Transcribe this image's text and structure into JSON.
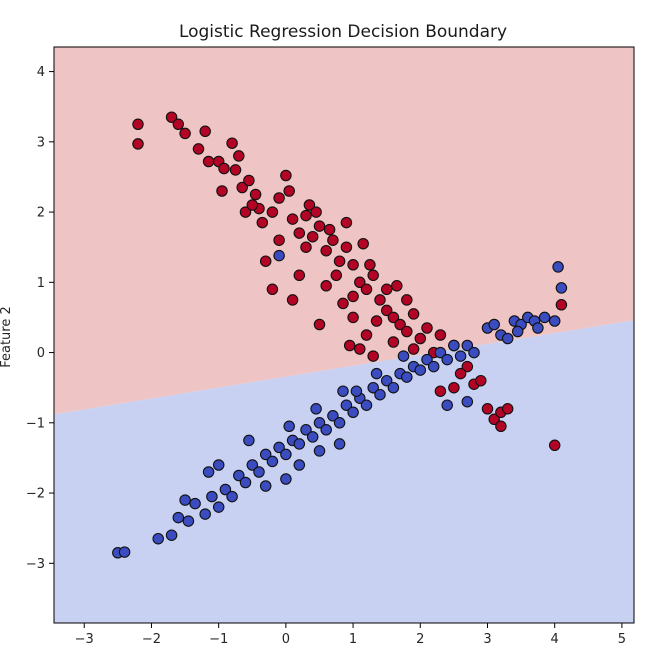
{
  "chart_data": {
    "type": "scatter",
    "title": "Logistic Regression Decision Boundary",
    "xlabel": "",
    "ylabel": "Feature 2",
    "xlim": [
      -3.45,
      5.18
    ],
    "ylim": [
      -3.85,
      4.35
    ],
    "x_ticks": [
      -3,
      -2,
      -1,
      0,
      1,
      2,
      3,
      4,
      5
    ],
    "y_ticks": [
      -3,
      -2,
      -1,
      0,
      1,
      2,
      3,
      4
    ],
    "x_tick_labels": [
      "−3",
      "−2",
      "−1",
      "0",
      "1",
      "2",
      "3",
      "4",
      "5"
    ],
    "y_tick_labels": [
      "−3",
      "−2",
      "−1",
      "0",
      "1",
      "2",
      "3",
      "4"
    ],
    "grid": false,
    "legend": "none",
    "decision_boundary": {
      "x": [
        -3.45,
        5.18
      ],
      "y": [
        -0.88,
        0.46
      ]
    },
    "regions": [
      {
        "class": 1,
        "side": "above",
        "color": "#eec4c4"
      },
      {
        "class": 0,
        "side": "below",
        "color": "#c8d1f1"
      }
    ],
    "series": [
      {
        "class": 1,
        "color": "#b40426",
        "points": [
          [
            -2.2,
            3.25
          ],
          [
            -2.2,
            2.97
          ],
          [
            -1.7,
            3.35
          ],
          [
            -1.6,
            3.25
          ],
          [
            -1.5,
            3.12
          ],
          [
            -1.3,
            2.9
          ],
          [
            -1.2,
            3.15
          ],
          [
            -1.15,
            2.72
          ],
          [
            -1.0,
            2.72
          ],
          [
            -0.92,
            2.62
          ],
          [
            -0.8,
            2.98
          ],
          [
            -0.75,
            2.6
          ],
          [
            -0.7,
            2.8
          ],
          [
            -0.95,
            2.3
          ],
          [
            -0.65,
            2.35
          ],
          [
            -0.55,
            2.45
          ],
          [
            -0.45,
            2.25
          ],
          [
            -0.4,
            2.05
          ],
          [
            -0.35,
            1.85
          ],
          [
            -0.6,
            2.0
          ],
          [
            -0.2,
            2.0
          ],
          [
            -0.1,
            2.2
          ],
          [
            0.0,
            2.52
          ],
          [
            0.1,
            1.9
          ],
          [
            0.2,
            1.7
          ],
          [
            -0.1,
            1.6
          ],
          [
            0.3,
            1.5
          ],
          [
            0.4,
            1.65
          ],
          [
            0.5,
            1.8
          ],
          [
            0.6,
            1.45
          ],
          [
            0.35,
            2.1
          ],
          [
            0.45,
            2.0
          ],
          [
            0.7,
            1.6
          ],
          [
            0.8,
            1.3
          ],
          [
            0.9,
            1.5
          ],
          [
            1.0,
            1.25
          ],
          [
            0.75,
            1.1
          ],
          [
            1.1,
            1.0
          ],
          [
            1.2,
            0.9
          ],
          [
            1.0,
            0.8
          ],
          [
            1.3,
            1.1
          ],
          [
            1.4,
            0.75
          ],
          [
            1.5,
            0.6
          ],
          [
            1.6,
            0.5
          ],
          [
            1.7,
            0.4
          ],
          [
            1.8,
            0.3
          ],
          [
            1.9,
            0.55
          ],
          [
            2.0,
            0.2
          ],
          [
            2.1,
            0.35
          ],
          [
            1.5,
            0.9
          ],
          [
            1.35,
            0.45
          ],
          [
            1.2,
            0.25
          ],
          [
            1.0,
            0.5
          ],
          [
            0.95,
            0.1
          ],
          [
            1.1,
            0.05
          ],
          [
            0.5,
            0.4
          ],
          [
            0.1,
            0.75
          ],
          [
            -0.2,
            0.9
          ],
          [
            -0.3,
            1.3
          ],
          [
            0.2,
            1.1
          ],
          [
            0.6,
            0.95
          ],
          [
            0.85,
            0.7
          ],
          [
            1.25,
            1.25
          ],
          [
            1.65,
            0.95
          ],
          [
            1.8,
            0.75
          ],
          [
            2.3,
            0.25
          ],
          [
            2.5,
            0.1
          ],
          [
            2.7,
            -0.2
          ],
          [
            2.8,
            -0.45
          ],
          [
            2.6,
            -0.3
          ],
          [
            2.9,
            -0.4
          ],
          [
            3.0,
            -0.8
          ],
          [
            3.1,
            -0.95
          ],
          [
            3.2,
            -0.85
          ],
          [
            3.3,
            -0.8
          ],
          [
            3.2,
            -1.05
          ],
          [
            2.3,
            -0.55
          ],
          [
            2.5,
            -0.5
          ],
          [
            4.1,
            0.68
          ],
          [
            4.0,
            -1.32
          ],
          [
            1.6,
            0.15
          ],
          [
            1.9,
            0.05
          ],
          [
            2.2,
            0.0
          ],
          [
            1.3,
            -0.05
          ],
          [
            0.3,
            1.95
          ],
          [
            -0.5,
            2.1
          ],
          [
            0.05,
            2.3
          ],
          [
            0.65,
            1.75
          ],
          [
            0.9,
            1.85
          ],
          [
            1.15,
            1.55
          ]
        ]
      },
      {
        "class": 0,
        "color": "#3b4cc0",
        "points": [
          [
            -2.5,
            -2.85
          ],
          [
            -2.4,
            -2.84
          ],
          [
            -1.9,
            -2.65
          ],
          [
            -1.7,
            -2.6
          ],
          [
            -1.6,
            -2.35
          ],
          [
            -1.5,
            -2.1
          ],
          [
            -1.45,
            -2.4
          ],
          [
            -1.35,
            -2.15
          ],
          [
            -1.2,
            -2.3
          ],
          [
            -1.1,
            -2.05
          ],
          [
            -1.0,
            -2.2
          ],
          [
            -0.9,
            -1.95
          ],
          [
            -0.8,
            -2.05
          ],
          [
            -0.7,
            -1.75
          ],
          [
            -0.6,
            -1.85
          ],
          [
            -0.5,
            -1.6
          ],
          [
            -0.4,
            -1.7
          ],
          [
            -0.3,
            -1.45
          ],
          [
            -0.2,
            -1.55
          ],
          [
            -0.1,
            -1.35
          ],
          [
            0.0,
            -1.45
          ],
          [
            0.1,
            -1.25
          ],
          [
            0.2,
            -1.3
          ],
          [
            0.3,
            -1.1
          ],
          [
            0.4,
            -1.2
          ],
          [
            0.5,
            -1.0
          ],
          [
            0.6,
            -1.1
          ],
          [
            0.7,
            -0.9
          ],
          [
            0.8,
            -1.0
          ],
          [
            0.9,
            -0.75
          ],
          [
            1.0,
            -0.85
          ],
          [
            1.1,
            -0.65
          ],
          [
            1.2,
            -0.75
          ],
          [
            1.3,
            -0.5
          ],
          [
            1.4,
            -0.6
          ],
          [
            1.5,
            -0.4
          ],
          [
            1.6,
            -0.5
          ],
          [
            1.7,
            -0.3
          ],
          [
            1.8,
            -0.35
          ],
          [
            1.9,
            -0.2
          ],
          [
            2.0,
            -0.25
          ],
          [
            2.1,
            -0.1
          ],
          [
            2.2,
            -0.2
          ],
          [
            2.3,
            0.0
          ],
          [
            2.4,
            -0.1
          ],
          [
            2.5,
            0.1
          ],
          [
            2.6,
            -0.05
          ],
          [
            2.7,
            0.1
          ],
          [
            2.8,
            0.0
          ],
          [
            3.0,
            0.35
          ],
          [
            3.1,
            0.4
          ],
          [
            3.2,
            0.25
          ],
          [
            3.3,
            0.2
          ],
          [
            3.4,
            0.45
          ],
          [
            3.5,
            0.4
          ],
          [
            3.6,
            0.5
          ],
          [
            3.7,
            0.45
          ],
          [
            3.85,
            0.5
          ],
          [
            4.05,
            1.22
          ],
          [
            4.1,
            0.92
          ],
          [
            4.0,
            0.45
          ],
          [
            3.75,
            0.35
          ],
          [
            3.45,
            0.3
          ],
          [
            -0.3,
            -1.9
          ],
          [
            0.0,
            -1.8
          ],
          [
            0.2,
            -1.6
          ],
          [
            0.5,
            -1.4
          ],
          [
            0.8,
            -1.3
          ],
          [
            -1.0,
            -1.6
          ],
          [
            -0.55,
            -1.25
          ],
          [
            0.05,
            -1.05
          ],
          [
            0.45,
            -0.8
          ],
          [
            0.85,
            -0.55
          ],
          [
            1.05,
            -0.55
          ],
          [
            1.35,
            -0.3
          ],
          [
            1.75,
            -0.05
          ],
          [
            -0.1,
            1.38
          ],
          [
            2.4,
            -0.75
          ],
          [
            2.7,
            -0.7
          ],
          [
            -1.15,
            -1.7
          ]
        ]
      }
    ]
  }
}
